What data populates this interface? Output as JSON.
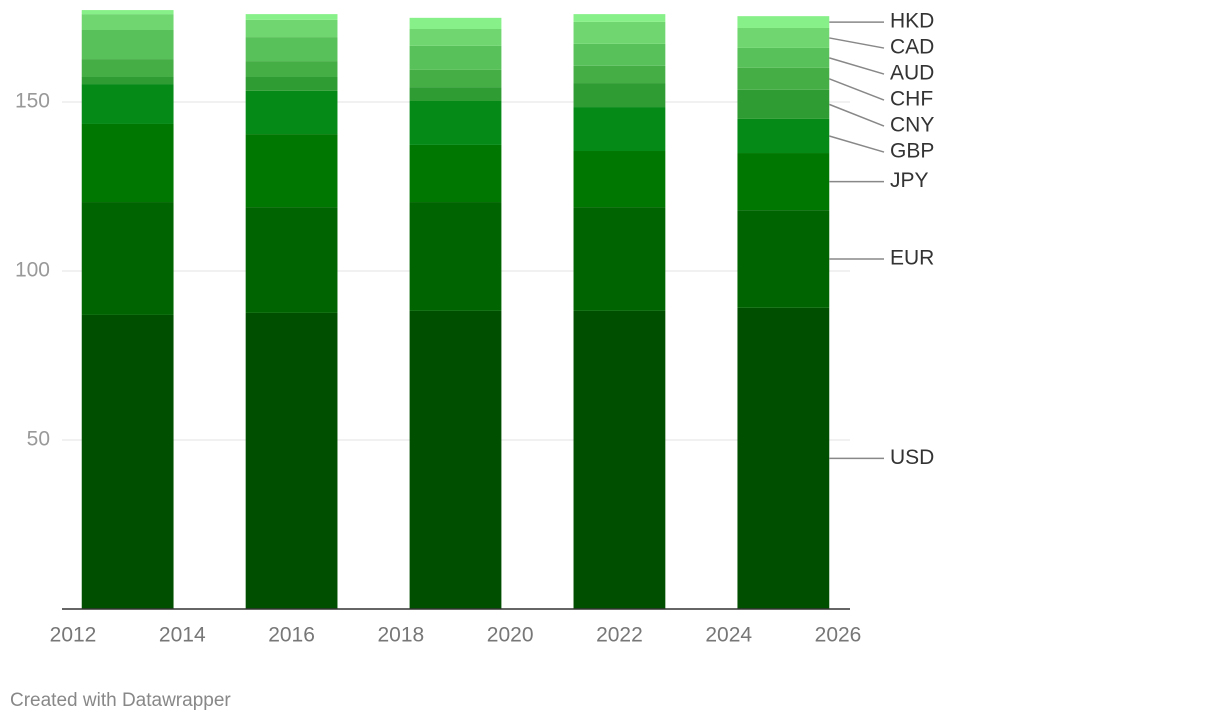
{
  "chart_data": {
    "type": "stacked-bar",
    "x": [
      2013,
      2016,
      2019,
      2022,
      2025
    ],
    "xlim": [
      2012,
      2026
    ],
    "xticks": [
      2012,
      2014,
      2016,
      2018,
      2020,
      2022,
      2024,
      2026
    ],
    "ylim": [
      0,
      180
    ],
    "yticks": [
      50,
      100,
      150
    ],
    "grid": true,
    "series": [
      {
        "name": "USD",
        "color": "#004f00",
        "values": [
          87.0,
          87.6,
          88.2,
          88.2,
          89.1
        ]
      },
      {
        "name": "EUR",
        "color": "#006500",
        "values": [
          33.4,
          31.3,
          32.2,
          30.7,
          28.9
        ]
      },
      {
        "name": "JPY",
        "color": "#007700",
        "values": [
          23.1,
          21.6,
          16.9,
          16.6,
          16.9
        ]
      },
      {
        "name": "GBP",
        "color": "#058a17",
        "values": [
          11.8,
          12.8,
          13.0,
          13.0,
          10.1
        ]
      },
      {
        "name": "CNY",
        "color": "#2e9c32",
        "values": [
          2.1,
          4.1,
          4.1,
          7.1,
          8.6
        ]
      },
      {
        "name": "CHF",
        "color": "#45ae45",
        "values": [
          5.3,
          4.7,
          5.1,
          5.1,
          6.5
        ]
      },
      {
        "name": "AUD",
        "color": "#59c159",
        "values": [
          8.6,
          7.1,
          7.1,
          6.5,
          5.9
        ]
      },
      {
        "name": "CAD",
        "color": "#70d770",
        "values": [
          4.7,
          5.1,
          5.0,
          6.5,
          5.9
        ]
      },
      {
        "name": "HKD",
        "color": "#88f088",
        "values": [
          1.2,
          1.7,
          3.3,
          2.3,
          3.5
        ]
      }
    ],
    "footer": "Created with Datawrapper"
  }
}
